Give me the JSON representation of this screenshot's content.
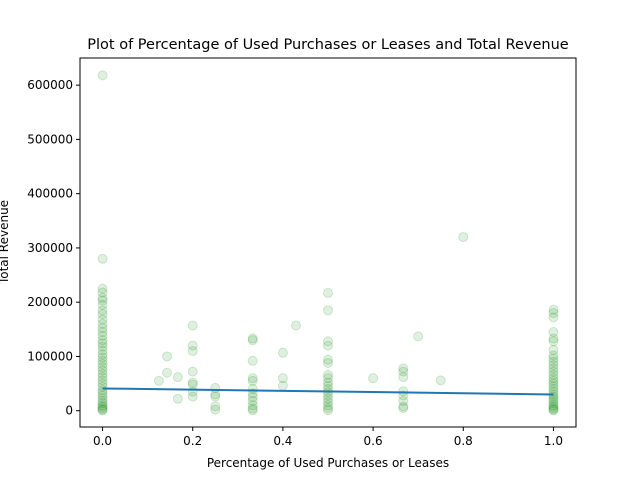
{
  "chart_data": {
    "type": "scatter",
    "title": "Plot of Percentage of Used Purchases or Leases and Total Revenue",
    "xlabel": "Percentage of Used Purchases or Leases",
    "ylabel": "Total Revenue",
    "xlim": [
      -0.05,
      1.05
    ],
    "ylim": [
      -30000,
      650000
    ],
    "x_ticks": [
      0.0,
      0.2,
      0.4,
      0.6,
      0.8,
      1.0
    ],
    "x_tick_labels": [
      "0.0",
      "0.2",
      "0.4",
      "0.6",
      "0.8",
      "1.0"
    ],
    "y_ticks": [
      0,
      100000,
      200000,
      300000,
      400000,
      500000,
      600000
    ],
    "y_tick_labels": [
      "0",
      "100000",
      "200000",
      "300000",
      "400000",
      "500000",
      "600000"
    ],
    "grid": false,
    "point_color": "#008000",
    "point_alpha": 0.12,
    "line_color": "#1f77b4",
    "points": [
      [
        0.0,
        618000
      ],
      [
        0.0,
        280000
      ],
      [
        0.0,
        225000
      ],
      [
        0.0,
        218000
      ],
      [
        0.0,
        208000
      ],
      [
        0.0,
        203000
      ],
      [
        0.0,
        195000
      ],
      [
        0.0,
        185000
      ],
      [
        0.0,
        178000
      ],
      [
        0.0,
        168000
      ],
      [
        0.0,
        160000
      ],
      [
        0.0,
        152000
      ],
      [
        0.0,
        145000
      ],
      [
        0.0,
        138000
      ],
      [
        0.0,
        130000
      ],
      [
        0.0,
        124000
      ],
      [
        0.0,
        118000
      ],
      [
        0.0,
        111000
      ],
      [
        0.0,
        104000
      ],
      [
        0.0,
        98000
      ],
      [
        0.0,
        92000
      ],
      [
        0.0,
        86000
      ],
      [
        0.0,
        80000
      ],
      [
        0.0,
        74000
      ],
      [
        0.0,
        68000
      ],
      [
        0.0,
        62000
      ],
      [
        0.0,
        56000
      ],
      [
        0.0,
        50000
      ],
      [
        0.0,
        44000
      ],
      [
        0.0,
        38000
      ],
      [
        0.0,
        33000
      ],
      [
        0.0,
        28000
      ],
      [
        0.0,
        23000
      ],
      [
        0.0,
        18000
      ],
      [
        0.0,
        14000
      ],
      [
        0.0,
        10000
      ],
      [
        0.0,
        7000
      ],
      [
        0.0,
        4000
      ],
      [
        0.0,
        2000
      ],
      [
        0.0,
        500
      ],
      [
        0.125,
        55000
      ],
      [
        0.143,
        100000
      ],
      [
        0.143,
        70000
      ],
      [
        0.167,
        62000
      ],
      [
        0.167,
        22000
      ],
      [
        0.2,
        157000
      ],
      [
        0.2,
        120000
      ],
      [
        0.2,
        110000
      ],
      [
        0.2,
        72000
      ],
      [
        0.2,
        52000
      ],
      [
        0.2,
        48000
      ],
      [
        0.2,
        35000
      ],
      [
        0.2,
        26000
      ],
      [
        0.25,
        42000
      ],
      [
        0.25,
        30000
      ],
      [
        0.25,
        26000
      ],
      [
        0.25,
        8000
      ],
      [
        0.25,
        2000
      ],
      [
        0.333,
        133000
      ],
      [
        0.333,
        130000
      ],
      [
        0.333,
        92000
      ],
      [
        0.333,
        60000
      ],
      [
        0.333,
        55000
      ],
      [
        0.333,
        40000
      ],
      [
        0.333,
        32000
      ],
      [
        0.333,
        25000
      ],
      [
        0.333,
        18000
      ],
      [
        0.333,
        10000
      ],
      [
        0.333,
        4000
      ],
      [
        0.333,
        1000
      ],
      [
        0.4,
        107000
      ],
      [
        0.4,
        60000
      ],
      [
        0.4,
        46000
      ],
      [
        0.429,
        157000
      ],
      [
        0.5,
        217000
      ],
      [
        0.5,
        185000
      ],
      [
        0.5,
        128000
      ],
      [
        0.5,
        120000
      ],
      [
        0.5,
        94000
      ],
      [
        0.5,
        88000
      ],
      [
        0.5,
        66000
      ],
      [
        0.5,
        60000
      ],
      [
        0.5,
        52000
      ],
      [
        0.5,
        46000
      ],
      [
        0.5,
        40000
      ],
      [
        0.5,
        34000
      ],
      [
        0.5,
        28000
      ],
      [
        0.5,
        22000
      ],
      [
        0.5,
        16000
      ],
      [
        0.5,
        10000
      ],
      [
        0.5,
        5000
      ],
      [
        0.5,
        1000
      ],
      [
        0.6,
        60000
      ],
      [
        0.667,
        78000
      ],
      [
        0.667,
        72000
      ],
      [
        0.667,
        62000
      ],
      [
        0.667,
        36000
      ],
      [
        0.667,
        28000
      ],
      [
        0.667,
        18000
      ],
      [
        0.667,
        8000
      ],
      [
        0.667,
        5000
      ],
      [
        0.7,
        137000
      ],
      [
        0.75,
        56000
      ],
      [
        0.8,
        320000
      ],
      [
        1.0,
        186000
      ],
      [
        1.0,
        180000
      ],
      [
        1.0,
        172000
      ],
      [
        1.0,
        145000
      ],
      [
        1.0,
        133000
      ],
      [
        1.0,
        128000
      ],
      [
        1.0,
        112000
      ],
      [
        1.0,
        102000
      ],
      [
        1.0,
        96000
      ],
      [
        1.0,
        90000
      ],
      [
        1.0,
        84000
      ],
      [
        1.0,
        78000
      ],
      [
        1.0,
        72000
      ],
      [
        1.0,
        66000
      ],
      [
        1.0,
        60000
      ],
      [
        1.0,
        55000
      ],
      [
        1.0,
        50000
      ],
      [
        1.0,
        45000
      ],
      [
        1.0,
        40000
      ],
      [
        1.0,
        35000
      ],
      [
        1.0,
        30000
      ],
      [
        1.0,
        26000
      ],
      [
        1.0,
        22000
      ],
      [
        1.0,
        18000
      ],
      [
        1.0,
        14000
      ],
      [
        1.0,
        10000
      ],
      [
        1.0,
        7000
      ],
      [
        1.0,
        4000
      ],
      [
        1.0,
        2000
      ],
      [
        1.0,
        500
      ]
    ],
    "trend_line": {
      "x": [
        0.0,
        1.0
      ],
      "y": [
        41000,
        30000
      ]
    }
  }
}
